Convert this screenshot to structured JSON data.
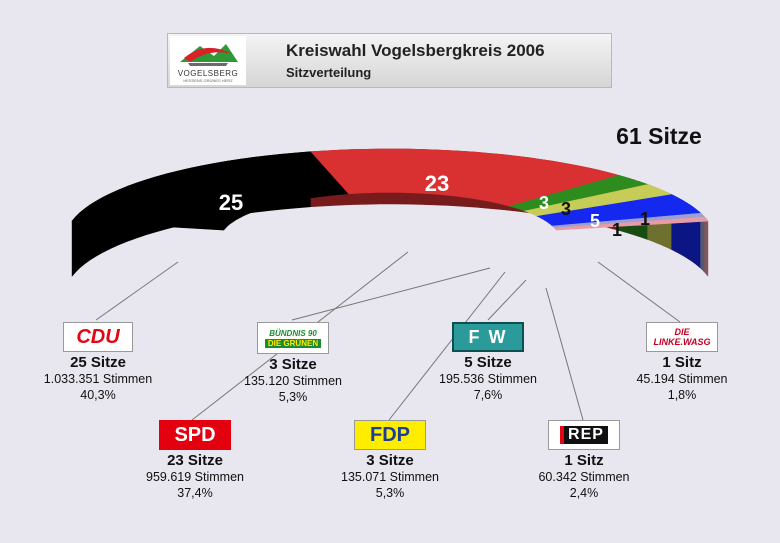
{
  "header": {
    "title": "Kreiswahl Vogelsbergkreis 2006",
    "subtitle": "Sitzverteilung",
    "logo_text": "VOGELSBERG",
    "logo_subtext": "HESSENS GRÜNES HERZ"
  },
  "chart_data": {
    "type": "semicircle-seat-distribution",
    "title": "61 Sitze",
    "total_seats": 61,
    "series": [
      {
        "party": "CDU",
        "seats": 25,
        "seats_label": "25 Sitze",
        "votes": "1.033.351 Stimmen",
        "percent": "40,3%",
        "color": "#000000"
      },
      {
        "party": "SPD",
        "seats": 23,
        "seats_label": "23 Sitze",
        "votes": "959.619 Stimmen",
        "percent": "37,4%",
        "color": "#d93132"
      },
      {
        "party": "Bündnis 90 / Die Grünen",
        "seats": 3,
        "seats_label": "3 Sitze",
        "votes": "135.120 Stimmen",
        "percent": "5,3%",
        "color": "#2e8b1e"
      },
      {
        "party": "FDP",
        "seats": 3,
        "seats_label": "3 Sitze",
        "votes": "135.071 Stimmen",
        "percent": "5,3%",
        "color": "#c6cc55"
      },
      {
        "party": "FW",
        "seats": 5,
        "seats_label": "5 Sitze",
        "votes": "195.536 Stimmen",
        "percent": "7,6%",
        "color": "#1428f0"
      },
      {
        "party": "REP",
        "seats": 1,
        "seats_label": "1 Sitz",
        "votes": "60.342 Stimmen",
        "percent": "2,4%",
        "color": "#9aa0d0"
      },
      {
        "party": "Die Linke.WASG",
        "seats": 1,
        "seats_label": "1 Sitz",
        "votes": "45.194 Stimmen",
        "percent": "1,8%",
        "color": "#e89aa6"
      }
    ]
  },
  "logos": {
    "cdu": "CDU",
    "spd": "SPD",
    "gruene_line1": "BÜNDNIS 90",
    "gruene_line2": "DIE GRÜNEN",
    "fdp": "FDP",
    "fw": "F W",
    "rep": "REP",
    "linke": "DIE LINKE.WASG"
  }
}
